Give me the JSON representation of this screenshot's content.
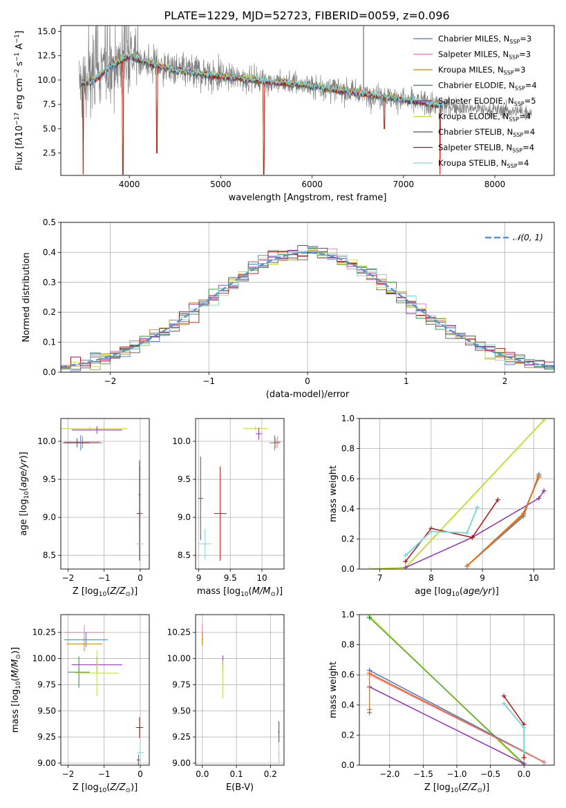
{
  "figure_title": "PLATE=1229, MJD=52723, FIBERID=0059, z=0.096",
  "models": [
    {
      "name": "Chabrier MILES",
      "nssp": "3",
      "color": "#4b78c8"
    },
    {
      "name": "Salpeter MILES",
      "nssp": "3",
      "color": "#e07ab0"
    },
    {
      "name": "Kroupa MILES",
      "nssp": "3",
      "color": "#c8860e"
    },
    {
      "name": "Chabrier ELODIE",
      "nssp": "4",
      "color": "#2e8b3a"
    },
    {
      "name": "Salpeter ELODIE",
      "nssp": "5",
      "color": "#8e2fb8"
    },
    {
      "name": "Kroupa ELODIE",
      "nssp": "4",
      "color": "#bfe03c"
    },
    {
      "name": "Chabrier STELIB",
      "nssp": "4",
      "color": "#555555"
    },
    {
      "name": "Salpeter STELIB",
      "nssp": "4",
      "color": "#b01010"
    },
    {
      "name": "Kroupa STELIB",
      "nssp": "4",
      "color": "#7fd6d6"
    }
  ],
  "chart_data": [
    {
      "id": "spectrum",
      "type": "line",
      "xlabel": "wavelength [Angstrom, rest frame]",
      "ylabel": "Flux [fλ10⁻¹⁷ erg cm⁻² s⁻¹ A⁻¹]",
      "xlim": [
        3250,
        8650
      ],
      "ylim": [
        0.2,
        15.6
      ],
      "xticks": [
        4000,
        5000,
        6000,
        7000,
        8000
      ],
      "yticks": [
        2.5,
        5.0,
        7.5,
        10.0,
        12.5,
        15.0
      ],
      "ytick_labels": [
        "2.5",
        "5.0",
        "7.5",
        "10.0",
        "12.5",
        "15.0"
      ],
      "data_series": {
        "name": "data",
        "color": "#808080"
      },
      "continuum_shape": {
        "x": [
          3450,
          3600,
          3800,
          4000,
          4200,
          4500,
          5000,
          5500,
          6000,
          6500,
          7000,
          7500,
          8000,
          8400
        ],
        "y": [
          9.6,
          9.9,
          11.5,
          12.5,
          11.8,
          11.0,
          10.4,
          9.9,
          9.4,
          8.7,
          8.0,
          7.3,
          6.9,
          6.7
        ]
      },
      "dips": [
        [
          3495,
          0.3
        ],
        [
          3930,
          0.3
        ],
        [
          4300,
          2.5
        ],
        [
          5470,
          0.3
        ],
        [
          6790,
          5.0
        ],
        [
          7400,
          0.3
        ]
      ],
      "legend_position": "upper right",
      "grid": false
    },
    {
      "id": "residuals",
      "type": "step-histogram",
      "xlabel": "(data-model)/error",
      "ylabel": "Normed distribution",
      "xlim": [
        -2.5,
        2.5
      ],
      "ylim": [
        0.0,
        0.5
      ],
      "xticks": [
        -2,
        -1,
        0,
        1,
        2
      ],
      "yticks": [
        0.0,
        0.1,
        0.2,
        0.3,
        0.4,
        0.5
      ],
      "ytick_labels": [
        "0.0",
        "0.1",
        "0.2",
        "0.3",
        "0.4",
        "0.5"
      ],
      "bins": 50,
      "curve": {
        "name": "𝒩(0, 1)",
        "color": "#5b8fd0",
        "style": "dashed",
        "mu": 0,
        "sigma": 1
      },
      "legend_position": "upper right",
      "grid": true
    },
    {
      "id": "age-vs-Z",
      "type": "errorbar",
      "xlabel": "Z [log10(Z/Z⊙)]",
      "ylabel": "age [log10(age/yr)]",
      "xlim": [
        -2.2,
        0.25
      ],
      "ylim": [
        8.32,
        10.3
      ],
      "xticks": [
        -2,
        -1,
        0
      ],
      "yticks": [
        8.5,
        9.0,
        9.5,
        10.0
      ],
      "ytick_labels": [
        "8.5",
        "9.0",
        "9.5",
        "10.0"
      ],
      "points": [
        {
          "x": -1.4,
          "xe": 1.05,
          "y": 10.17,
          "ye": 0.03,
          "c": "#bfe03c"
        },
        {
          "x": -1.2,
          "xe": 0.7,
          "y": 10.15,
          "ye": 0.05,
          "c": "#8e2fb8"
        },
        {
          "x": -1.65,
          "xe": 0.5,
          "y": 9.98,
          "ye": 0.1,
          "c": "#4b78c8"
        },
        {
          "x": -1.6,
          "xe": 0.5,
          "y": 9.99,
          "ye": 0.08,
          "c": "#e07ab0"
        },
        {
          "x": -1.6,
          "xe": 0.55,
          "y": 9.98,
          "ye": 0.07,
          "c": "#c8860e"
        },
        {
          "x": -1.75,
          "xe": 0.35,
          "y": 9.98,
          "ye": 0.06,
          "c": "#555555"
        },
        {
          "x": -0.02,
          "xe": 0.08,
          "y": 9.05,
          "ye": 0.62,
          "c": "#b01010"
        },
        {
          "x": -0.02,
          "xe": 0.03,
          "y": 9.3,
          "ye": 0.45,
          "c": "#555555"
        },
        {
          "x": 0.0,
          "xe": 0.1,
          "y": 8.65,
          "ye": 0.2,
          "c": "#7fd6d6"
        }
      ],
      "grid": true
    },
    {
      "id": "age-vs-mass",
      "type": "errorbar",
      "xlabel": "mass [log10(M/M⊙)]",
      "ylabel": "",
      "xlim": [
        8.95,
        10.35
      ],
      "ylim": [
        8.32,
        10.3
      ],
      "xticks": [
        9.0,
        9.5,
        10.0
      ],
      "yticks": [
        8.5,
        9.0,
        9.5,
        10.0
      ],
      "ytick_labels": [
        "8.5",
        "9.0",
        "9.5",
        "10.0"
      ],
      "points": [
        {
          "x": 9.9,
          "xe": 0.2,
          "y": 10.17,
          "ye": 0.03,
          "c": "#bfe03c"
        },
        {
          "x": 9.95,
          "xe": 0.05,
          "y": 10.1,
          "ye": 0.08,
          "c": "#8e2fb8"
        },
        {
          "x": 10.2,
          "xe": 0.08,
          "y": 9.98,
          "ye": 0.1,
          "c": "#4b78c8"
        },
        {
          "x": 10.25,
          "xe": 0.05,
          "y": 9.99,
          "ye": 0.08,
          "c": "#e07ab0"
        },
        {
          "x": 10.22,
          "xe": 0.06,
          "y": 9.98,
          "ye": 0.07,
          "c": "#c8860e"
        },
        {
          "x": 9.34,
          "xe": 0.1,
          "y": 9.05,
          "ye": 0.62,
          "c": "#b01010"
        },
        {
          "x": 9.03,
          "xe": 0.04,
          "y": 9.25,
          "ye": 0.55,
          "c": "#555555"
        },
        {
          "x": 9.1,
          "xe": 0.1,
          "y": 8.65,
          "ye": 0.2,
          "c": "#7fd6d6"
        }
      ],
      "grid": true
    },
    {
      "id": "weight-vs-age",
      "type": "line",
      "xlabel": "age [log10(age/yr)]",
      "ylabel": "mass weight",
      "xlim": [
        6.6,
        10.4
      ],
      "ylim": [
        0.0,
        1.0
      ],
      "xticks": [
        7,
        8,
        9,
        10
      ],
      "yticks": [
        0.0,
        0.2,
        0.4,
        0.6,
        0.8,
        1.0
      ],
      "ytick_labels": [
        "0.0",
        "0.2",
        "0.4",
        "0.6",
        "0.8",
        "1.0"
      ],
      "series": [
        {
          "c": "#bfe03c",
          "w": 2,
          "x": [
            6.8,
            7.5,
            10.2
          ],
          "y": [
            0.0,
            0.01,
            0.99
          ]
        },
        {
          "c": "#8e2fb8",
          "w": 1.5,
          "x": [
            7.5,
            8.8,
            10.1,
            10.2
          ],
          "y": [
            0.01,
            0.21,
            0.47,
            0.52
          ]
        },
        {
          "c": "#b01010",
          "w": 1.5,
          "x": [
            7.5,
            8.0,
            8.8,
            9.3
          ],
          "y": [
            0.05,
            0.27,
            0.21,
            0.46
          ]
        },
        {
          "c": "#7fd6d6",
          "w": 2,
          "x": [
            7.5,
            8.0,
            8.7,
            8.9
          ],
          "y": [
            0.09,
            0.25,
            0.24,
            0.41
          ]
        },
        {
          "c": "#4b78c8",
          "w": 1.5,
          "x": [
            8.7,
            9.8,
            10.1
          ],
          "y": [
            0.02,
            0.35,
            0.63
          ]
        },
        {
          "c": "#e07ab0",
          "w": 1.5,
          "x": [
            8.7,
            9.8,
            10.1
          ],
          "y": [
            0.02,
            0.37,
            0.61
          ]
        },
        {
          "c": "#c8860e",
          "w": 1.5,
          "x": [
            8.7,
            9.8,
            10.1
          ],
          "y": [
            0.02,
            0.36,
            0.62
          ]
        },
        {
          "c": "#e87020",
          "w": 2,
          "x": [
            8.7,
            9.8,
            10.1
          ],
          "y": [
            0.02,
            0.37,
            0.61
          ]
        }
      ],
      "grid": true
    },
    {
      "id": "mass-vs-Z",
      "type": "errorbar",
      "xlabel": "Z [log10(Z/Z⊙)]",
      "ylabel": "mass [log10(M/M⊙)]",
      "xlim": [
        -2.2,
        0.25
      ],
      "ylim": [
        8.98,
        10.42
      ],
      "xticks": [
        -2,
        -1,
        0
      ],
      "yticks": [
        9.0,
        9.25,
        9.5,
        9.75,
        10.0,
        10.25
      ],
      "ytick_labels": [
        "9.00",
        "9.25",
        "9.50",
        "9.75",
        "10.00",
        "10.25"
      ],
      "points": [
        {
          "x": -1.55,
          "xe": 0.55,
          "y": 10.25,
          "ye": 0.07,
          "c": "#e07ab0"
        },
        {
          "x": -1.5,
          "xe": 0.6,
          "y": 10.18,
          "ye": 0.07,
          "c": "#4b78c8"
        },
        {
          "x": -1.55,
          "xe": 0.5,
          "y": 10.14,
          "ye": 0.07,
          "c": "#c8860e"
        },
        {
          "x": -1.2,
          "xe": 0.7,
          "y": 9.94,
          "ye": 0.08,
          "c": "#8e2fb8"
        },
        {
          "x": -1.7,
          "xe": 0.3,
          "y": 9.87,
          "ye": 0.15,
          "c": "#2e8b3a"
        },
        {
          "x": -1.2,
          "xe": 0.6,
          "y": 9.86,
          "ye": 0.22,
          "c": "#bfe03c"
        },
        {
          "x": -0.02,
          "xe": 0.1,
          "y": 9.34,
          "ye": 0.1,
          "c": "#b01010"
        },
        {
          "x": 0.0,
          "xe": 0.1,
          "y": 9.1,
          "ye": 0.08,
          "c": "#7fd6d6"
        },
        {
          "x": -0.05,
          "xe": 0.05,
          "y": 9.03,
          "ye": 0.05,
          "c": "#555555"
        }
      ],
      "grid": true
    },
    {
      "id": "mass-vs-EBV",
      "type": "errorbar",
      "xlabel": "E(B-V)",
      "ylabel": "",
      "xlim": [
        -0.02,
        0.24
      ],
      "ylim": [
        8.98,
        10.42
      ],
      "xticks": [
        0.0,
        0.1,
        0.2
      ],
      "yticks": [
        9.0,
        9.25,
        9.5,
        9.75,
        10.0,
        10.25
      ],
      "ytick_labels": [
        "9.00",
        "9.25",
        "9.50",
        "9.75",
        "10.00",
        "10.25"
      ],
      "xtick_labels": [
        "0.0",
        "0.1",
        "0.2"
      ],
      "points": [
        {
          "x": 0.0,
          "xe": 0.002,
          "y": 10.24,
          "ye": 0.1,
          "c": "#e07ab0"
        },
        {
          "x": 0.0,
          "xe": 0.002,
          "y": 10.18,
          "ye": 0.06,
          "c": "#c8860e"
        },
        {
          "x": 0.06,
          "xe": 0.002,
          "y": 9.95,
          "ye": 0.08,
          "c": "#8e2fb8"
        },
        {
          "x": 0.06,
          "xe": 0.002,
          "y": 9.8,
          "ye": 0.18,
          "c": "#bfe03c"
        },
        {
          "x": 0.225,
          "xe": 0.002,
          "y": 9.3,
          "ye": 0.1,
          "c": "#b01010"
        },
        {
          "x": 0.225,
          "xe": 0.002,
          "y": 9.1,
          "ye": 0.1,
          "c": "#7fd6d6"
        }
      ],
      "grid": true
    },
    {
      "id": "weight-vs-Z",
      "type": "line",
      "xlabel": "Z [log10(Z/Z⊙)]",
      "ylabel": "mass weight",
      "xlim": [
        -2.45,
        0.45
      ],
      "ylim": [
        0.0,
        1.0
      ],
      "xticks": [
        -2.0,
        -1.5,
        -1.0,
        -0.5,
        0.0
      ],
      "yticks": [
        0.0,
        0.2,
        0.4,
        0.6,
        0.8,
        1.0
      ],
      "xtick_labels": [
        "−2.0",
        "−1.5",
        "−1.0",
        "−0.5",
        "0.0"
      ],
      "ytick_labels": [
        "0.0",
        "0.2",
        "0.4",
        "0.6",
        "0.8",
        "1.0"
      ],
      "series": [
        {
          "c": "#bfe03c",
          "w": 2,
          "x": [
            -2.3,
            0.0
          ],
          "y": [
            0.99,
            0.0
          ]
        },
        {
          "c": "#2e8b3a",
          "w": 1,
          "x": [
            -2.3,
            0.0
          ],
          "y": [
            0.98,
            0.01
          ]
        },
        {
          "c": "#8e2fb8",
          "w": 1.5,
          "x": [
            -2.3,
            0.0
          ],
          "y": [
            0.52,
            0.01
          ]
        },
        {
          "c": "#4b78c8",
          "w": 1.5,
          "x": [
            -2.3,
            0.3
          ],
          "y": [
            0.63,
            0.02
          ]
        },
        {
          "c": "#e87020",
          "w": 2,
          "x": [
            -2.3,
            0.3
          ],
          "y": [
            0.61,
            0.02
          ]
        },
        {
          "c": "#e07ab0",
          "w": 1,
          "x": [
            -2.3,
            0.3
          ],
          "y": [
            0.6,
            0.02
          ]
        },
        {
          "c": "#b01010",
          "w": 1.5,
          "x": [
            -0.3,
            0.0,
            0.0
          ],
          "y": [
            0.46,
            0.27,
            0.05
          ]
        },
        {
          "c": "#7fd6d6",
          "w": 2,
          "x": [
            -0.3,
            0.0,
            0.0
          ],
          "y": [
            0.41,
            0.25,
            0.09
          ]
        },
        {
          "c": "#4b78c8",
          "w": 1,
          "x": [
            -2.3,
            -2.3
          ],
          "y": [
            0.35,
            0.63
          ]
        },
        {
          "c": "#e87020",
          "w": 1,
          "x": [
            -2.3,
            -2.3
          ],
          "y": [
            0.37,
            0.61
          ]
        }
      ],
      "grid": true
    }
  ]
}
